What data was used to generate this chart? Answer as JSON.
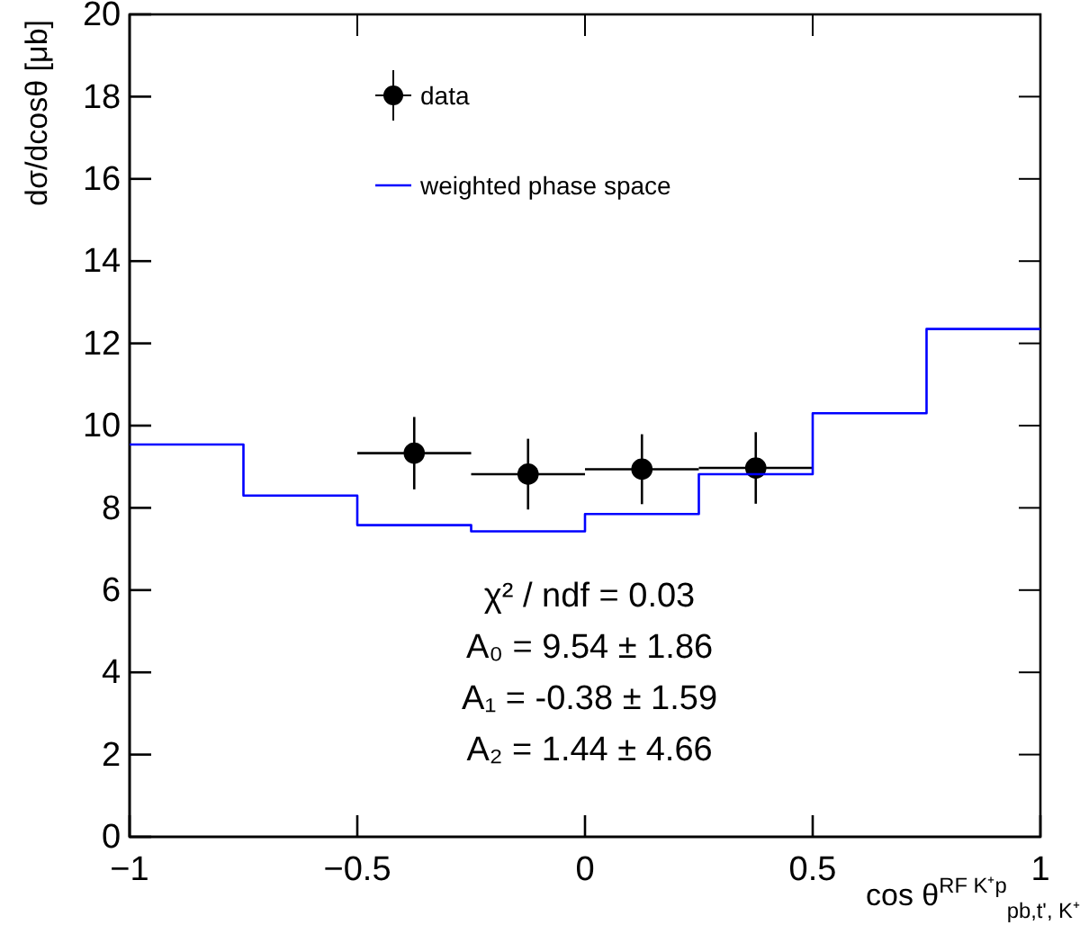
{
  "chart_data": {
    "type": "scatter",
    "xlabel": "cos θ$^{RF K⁺p}$$_{pb,t', K⁺}$",
    "ylabel": "dσ/dcosθ [μb]",
    "xlim": [
      -1,
      1
    ],
    "ylim": [
      0,
      20
    ],
    "xticks": [
      {
        "value": -1,
        "label": "−1"
      },
      {
        "value": -0.5,
        "label": "−0.5"
      },
      0,
      0.5,
      1
    ],
    "yticks": [
      0,
      2,
      4,
      6,
      8,
      10,
      12,
      14,
      16,
      18,
      20
    ],
    "legend": "top left",
    "series": [
      {
        "name": "data",
        "marker": "circle",
        "color": "#000000",
        "x": [
          -0.375,
          -0.125,
          0.125,
          0.375
        ],
        "values": [
          9.33,
          8.82,
          8.94,
          8.97
        ],
        "errors": [
          0.88,
          0.86,
          0.85,
          0.87
        ],
        "xerrors": [
          0.125,
          0.125,
          0.125,
          0.125
        ]
      },
      {
        "name": "weighted phase space",
        "type": "step",
        "color": "#0000ff",
        "x": [
          -1,
          -0.75,
          -0.5,
          -0.25,
          0,
          0.25,
          0.5,
          0.75,
          1
        ],
        "values": [
          9.54,
          8.3,
          7.58,
          7.43,
          7.85,
          8.82,
          10.3,
          12.35,
          12.35
        ]
      }
    ],
    "annotations": [
      "χ² / ndf = 0.03",
      "A₀ = 9.54 ± 1.86",
      "A₁ = -0.38 ± 1.59",
      "A₂ = 1.44 ± 4.66"
    ]
  }
}
